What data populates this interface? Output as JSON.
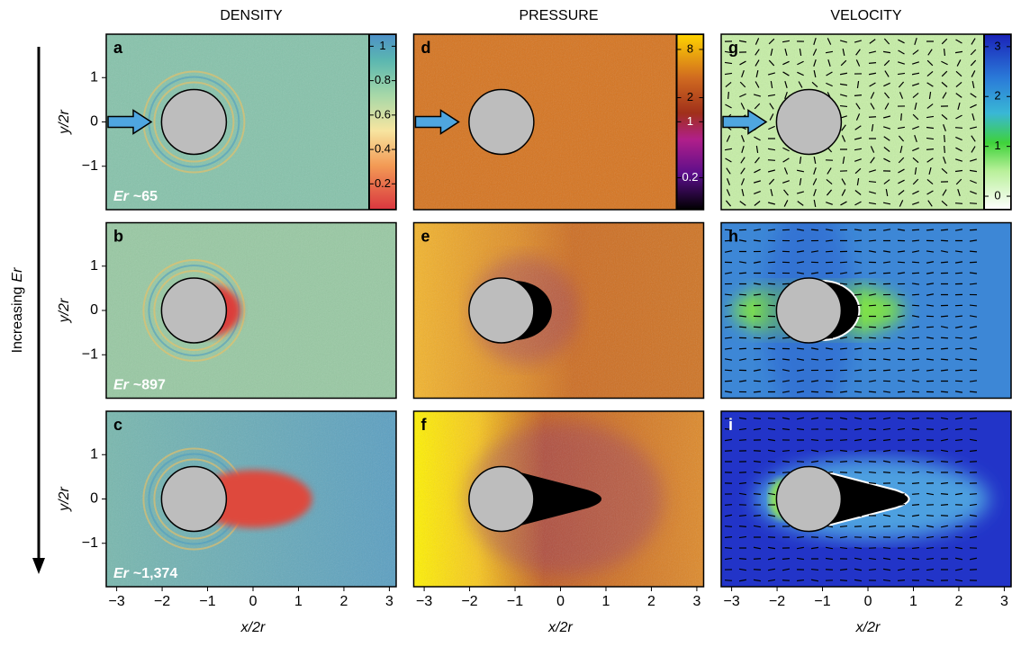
{
  "columns": [
    {
      "title": "DENSITY",
      "letters": [
        "a",
        "b",
        "c"
      ],
      "colorbar": {
        "scale": "linear",
        "lim": [
          0.05,
          1.07
        ],
        "ticks": [
          0.2,
          0.4,
          0.6,
          0.8,
          1
        ]
      }
    },
    {
      "title": "PRESSURE",
      "letters": [
        "d",
        "e",
        "f"
      ],
      "colorbar": {
        "scale": "log",
        "lim": [
          0.08,
          12.4
        ],
        "ticks": [
          0.2,
          1,
          2,
          8
        ]
      }
    },
    {
      "title": "VELOCITY",
      "letters": [
        "g",
        "h",
        "i"
      ],
      "colorbar": {
        "scale": "linear",
        "lim": [
          -0.27,
          3.25
        ],
        "ticks": [
          0,
          1,
          2,
          3
        ]
      }
    }
  ],
  "rows": [
    {
      "er_value": "~65"
    },
    {
      "er_value": "~897"
    },
    {
      "er_value": "~1,374"
    }
  ],
  "er_symbol": "Er",
  "side_label": "Increasing",
  "x_axis": {
    "label": "x/2r",
    "lim": [
      -3.23,
      3.15
    ],
    "ticks": [
      {
        "value": -3,
        "label": "−3"
      },
      {
        "value": -2,
        "label": "−2"
      },
      {
        "value": -1,
        "label": "−1"
      },
      0,
      1,
      2,
      3
    ]
  },
  "y_axis": {
    "label": "y/2r",
    "lim": [
      -1.98,
      1.98
    ],
    "ticks": [
      {
        "value": -1,
        "label": "−1"
      },
      0,
      1
    ]
  }
}
